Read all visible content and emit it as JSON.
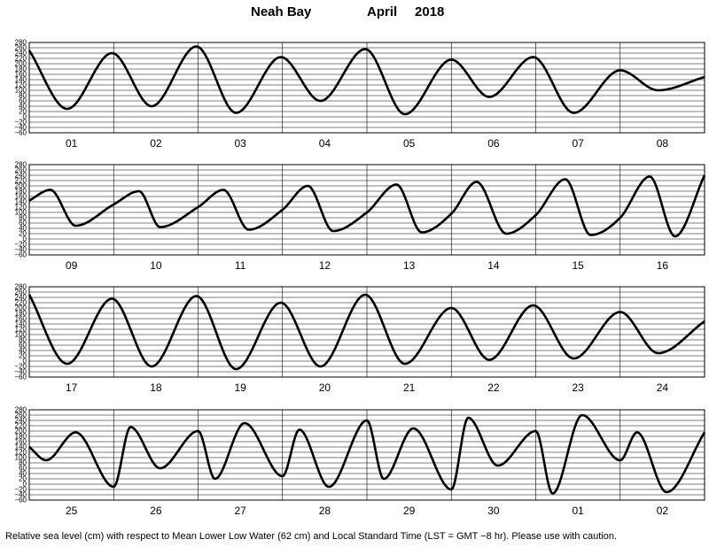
{
  "title": {
    "station": "Neah Bay",
    "month": "April",
    "year": "2018"
  },
  "footnote": "Relative sea level (cm) with respect to Mean Lower Low Water (62 cm) and Local Standard Time (LST = GMT −8 hr). Please use with caution.",
  "chart_data": [
    {
      "type": "line",
      "days": [
        "01",
        "02",
        "03",
        "04",
        "05",
        "06",
        "07",
        "08"
      ],
      "ylim": [
        -60,
        280
      ],
      "y_ticks": [
        -60,
        -40,
        -20,
        0,
        20,
        40,
        60,
        80,
        100,
        120,
        140,
        160,
        180,
        200,
        220,
        240,
        260,
        280
      ],
      "y_tick_labels": [
        "−60",
        "−40",
        "−20",
        "0",
        "20",
        "40",
        "60",
        "80",
        "100",
        "120",
        "140",
        "160",
        "180",
        "200",
        "220",
        "240",
        "260",
        "280"
      ],
      "series": [
        {
          "x_day_offset": [
            0,
            0.45,
            0.98,
            1.45,
            1.98,
            2.45,
            2.98,
            3.45,
            3.98,
            4.45,
            5.0,
            5.45,
            5.97,
            6.45,
            7.0,
            7.45,
            8.0
          ],
          "values": [
            250,
            30,
            240,
            40,
            265,
            15,
            225,
            60,
            255,
            10,
            215,
            75,
            225,
            15,
            175,
            100,
            150
          ]
        }
      ]
    },
    {
      "type": "line",
      "days": [
        "09",
        "10",
        "11",
        "12",
        "13",
        "14",
        "15",
        "16"
      ],
      "ylim": [
        -60,
        280
      ],
      "y_ticks": [
        -60,
        -40,
        -20,
        0,
        20,
        40,
        60,
        80,
        100,
        120,
        140,
        160,
        180,
        200,
        220,
        240,
        260,
        280
      ],
      "y_tick_labels": [
        "−60",
        "−40",
        "−20",
        "0",
        "20",
        "40",
        "60",
        "80",
        "100",
        "120",
        "140",
        "160",
        "180",
        "200",
        "220",
        "240",
        "260",
        "280"
      ],
      "series": [
        {
          "x_day_offset": [
            0,
            0.25,
            0.55,
            1.0,
            1.3,
            1.55,
            2.0,
            2.3,
            2.6,
            3.0,
            3.3,
            3.6,
            4.0,
            4.35,
            4.65,
            5.0,
            5.3,
            5.65,
            6.0,
            6.35,
            6.65,
            7.0,
            7.35,
            7.65,
            8.0
          ],
          "values": [
            145,
            185,
            50,
            130,
            180,
            45,
            120,
            185,
            35,
            110,
            200,
            30,
            100,
            205,
            25,
            95,
            215,
            20,
            90,
            225,
            15,
            80,
            235,
            10,
            240
          ]
        }
      ]
    },
    {
      "type": "line",
      "days": [
        "17",
        "18",
        "19",
        "20",
        "21",
        "22",
        "23",
        "24"
      ],
      "ylim": [
        -60,
        280
      ],
      "y_ticks": [
        -60,
        -40,
        -20,
        0,
        20,
        40,
        60,
        80,
        100,
        120,
        140,
        160,
        180,
        200,
        220,
        240,
        260,
        280
      ],
      "y_tick_labels": [
        "−60",
        "−40",
        "−20",
        "0",
        "20",
        "40",
        "60",
        "80",
        "100",
        "120",
        "140",
        "160",
        "180",
        "200",
        "220",
        "240",
        "260",
        "280"
      ],
      "series": [
        {
          "x_day_offset": [
            0,
            0.45,
            0.98,
            1.45,
            1.98,
            2.45,
            2.98,
            3.45,
            3.98,
            4.45,
            5.0,
            5.45,
            5.97,
            6.45,
            7.0,
            7.45,
            8.0
          ],
          "values": [
            250,
            -10,
            235,
            -20,
            245,
            -30,
            220,
            -20,
            250,
            -10,
            200,
            5,
            210,
            10,
            185,
            30,
            150
          ]
        }
      ]
    },
    {
      "type": "line",
      "days": [
        "25",
        "26",
        "27",
        "28",
        "29",
        "30",
        "01",
        "02"
      ],
      "ylim": [
        -60,
        280
      ],
      "y_ticks": [
        -60,
        -40,
        -20,
        0,
        20,
        40,
        60,
        80,
        100,
        120,
        140,
        160,
        180,
        200,
        220,
        240,
        260,
        280
      ],
      "y_tick_labels": [
        "−60",
        "−40",
        "−20",
        "0",
        "20",
        "40",
        "60",
        "80",
        "100",
        "120",
        "140",
        "160",
        "180",
        "200",
        "220",
        "240",
        "260",
        "280"
      ],
      "series": [
        {
          "x_day_offset": [
            0,
            0.2,
            0.55,
            1.0,
            1.2,
            1.55,
            2.0,
            2.2,
            2.55,
            3.0,
            3.2,
            3.55,
            4.0,
            4.2,
            4.55,
            5.0,
            5.2,
            5.55,
            6.0,
            6.2,
            6.55,
            7.0,
            7.2,
            7.55,
            8.0
          ],
          "values": [
            140,
            90,
            195,
            -10,
            215,
            60,
            200,
            20,
            230,
            30,
            205,
            -10,
            240,
            20,
            210,
            -20,
            250,
            70,
            200,
            -35,
            260,
            90,
            195,
            -30,
            195
          ]
        }
      ]
    }
  ]
}
